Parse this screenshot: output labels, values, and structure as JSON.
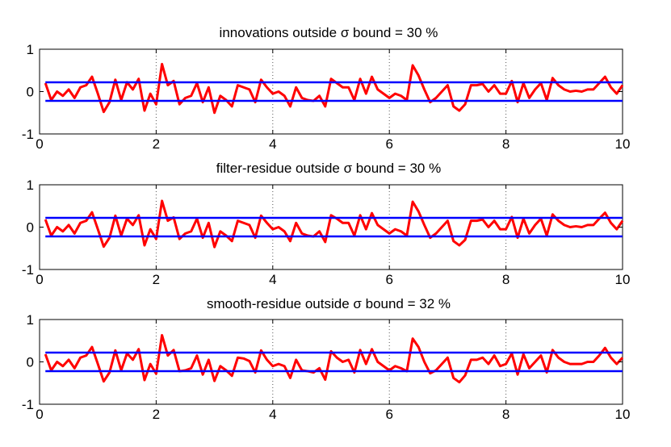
{
  "chart_data": [
    {
      "type": "line",
      "title": "innovations outside σ bound = 30 %",
      "xlim": [
        0,
        10
      ],
      "ylim": [
        -1,
        1
      ],
      "xticks": [
        "0",
        "2",
        "4",
        "6",
        "8",
        "10"
      ],
      "yticks": [
        "1",
        "0",
        "-1"
      ],
      "grid": "vertical dotted at x = 2, 4, 6, 8",
      "series": [
        {
          "color": "#ff0000",
          "x": [
            0.1,
            0.2,
            0.3,
            0.4,
            0.5,
            0.6,
            0.7,
            0.8,
            0.9,
            1.0,
            1.1,
            1.2,
            1.3,
            1.4,
            1.5,
            1.6,
            1.7,
            1.8,
            1.9,
            2.0,
            2.1,
            2.2,
            2.3,
            2.4,
            2.5,
            2.6,
            2.7,
            2.8,
            2.9,
            3.0,
            3.1,
            3.2,
            3.3,
            3.4,
            3.5,
            3.6,
            3.7,
            3.8,
            3.9,
            4.0,
            4.1,
            4.2,
            4.3,
            4.4,
            4.5,
            4.6,
            4.7,
            4.8,
            4.9,
            5.0,
            5.1,
            5.2,
            5.3,
            5.4,
            5.5,
            5.6,
            5.7,
            5.8,
            5.9,
            6.0,
            6.1,
            6.2,
            6.3,
            6.4,
            6.5,
            6.6,
            6.7,
            6.8,
            6.9,
            7.0,
            7.1,
            7.2,
            7.3,
            7.4,
            7.5,
            7.6,
            7.7,
            7.8,
            7.9,
            8.0,
            8.1,
            8.2,
            8.3,
            8.4,
            8.5,
            8.6,
            8.7,
            8.8,
            8.9,
            9.0,
            9.1,
            9.2,
            9.3,
            9.4,
            9.5,
            9.6,
            9.7,
            9.8,
            9.9,
            10.0
          ],
          "y": [
            0.2,
            -0.2,
            0.0,
            -0.1,
            0.05,
            -0.15,
            0.1,
            0.15,
            0.35,
            -0.05,
            -0.48,
            -0.25,
            0.28,
            -0.2,
            0.22,
            0.05,
            0.3,
            -0.45,
            -0.05,
            -0.3,
            0.65,
            0.15,
            0.25,
            -0.3,
            -0.15,
            -0.1,
            0.2,
            -0.25,
            0.1,
            -0.5,
            -0.1,
            -0.2,
            -0.35,
            0.15,
            0.1,
            0.05,
            -0.25,
            0.28,
            0.1,
            -0.05,
            0.0,
            -0.1,
            -0.35,
            0.1,
            -0.15,
            -0.2,
            -0.22,
            -0.1,
            -0.35,
            0.3,
            0.2,
            0.1,
            0.1,
            -0.2,
            0.3,
            -0.05,
            0.35,
            0.05,
            -0.05,
            -0.15,
            -0.05,
            -0.1,
            -0.2,
            0.62,
            0.38,
            0.05,
            -0.25,
            -0.15,
            0.0,
            0.15,
            -0.35,
            -0.45,
            -0.3,
            0.15,
            0.15,
            0.18,
            0.0,
            0.15,
            -0.05,
            -0.05,
            0.25,
            -0.25,
            0.2,
            -0.15,
            0.05,
            0.2,
            -0.2,
            0.32,
            0.15,
            0.05,
            0.0,
            0.02,
            0.0,
            0.05,
            0.05,
            0.2,
            0.35,
            0.1,
            -0.05,
            0.15
          ]
        },
        {
          "color": "#0000ff",
          "x": [
            0.1,
            10.0
          ],
          "y": [
            0.22,
            0.22
          ]
        },
        {
          "color": "#0000ff",
          "x": [
            0.1,
            10.0
          ],
          "y": [
            -0.22,
            -0.22
          ]
        }
      ]
    },
    {
      "type": "line",
      "title": "filter-residue outside σ bound = 30 %",
      "xlim": [
        0,
        10
      ],
      "ylim": [
        -1,
        1
      ],
      "xticks": [
        "0",
        "2",
        "4",
        "6",
        "8",
        "10"
      ],
      "yticks": [
        "1",
        "0",
        "-1"
      ],
      "grid": "vertical dotted at x = 2, 4, 6, 8",
      "series": [
        {
          "color": "#ff0000",
          "x": [
            0.1,
            0.2,
            0.3,
            0.4,
            0.5,
            0.6,
            0.7,
            0.8,
            0.9,
            1.0,
            1.1,
            1.2,
            1.3,
            1.4,
            1.5,
            1.6,
            1.7,
            1.8,
            1.9,
            2.0,
            2.1,
            2.2,
            2.3,
            2.4,
            2.5,
            2.6,
            2.7,
            2.8,
            2.9,
            3.0,
            3.1,
            3.2,
            3.3,
            3.4,
            3.5,
            3.6,
            3.7,
            3.8,
            3.9,
            4.0,
            4.1,
            4.2,
            4.3,
            4.4,
            4.5,
            4.6,
            4.7,
            4.8,
            4.9,
            5.0,
            5.1,
            5.2,
            5.3,
            5.4,
            5.5,
            5.6,
            5.7,
            5.8,
            5.9,
            6.0,
            6.1,
            6.2,
            6.3,
            6.4,
            6.5,
            6.6,
            6.7,
            6.8,
            6.9,
            7.0,
            7.1,
            7.2,
            7.3,
            7.4,
            7.5,
            7.6,
            7.7,
            7.8,
            7.9,
            8.0,
            8.1,
            8.2,
            8.3,
            8.4,
            8.5,
            8.6,
            8.7,
            8.8,
            8.9,
            9.0,
            9.1,
            9.2,
            9.3,
            9.4,
            9.5,
            9.6,
            9.7,
            9.8,
            9.9,
            10.0
          ],
          "y": [
            0.18,
            -0.2,
            0.0,
            -0.1,
            0.05,
            -0.15,
            0.1,
            0.15,
            0.35,
            -0.05,
            -0.46,
            -0.25,
            0.27,
            -0.2,
            0.2,
            0.05,
            0.28,
            -0.43,
            -0.05,
            -0.28,
            0.62,
            0.15,
            0.23,
            -0.28,
            -0.15,
            -0.1,
            0.2,
            -0.25,
            0.1,
            -0.47,
            -0.1,
            -0.2,
            -0.33,
            0.15,
            0.1,
            0.05,
            -0.25,
            0.27,
            0.1,
            -0.05,
            0.0,
            -0.1,
            -0.33,
            0.1,
            -0.15,
            -0.2,
            -0.22,
            -0.1,
            -0.35,
            0.28,
            0.2,
            0.1,
            0.1,
            -0.2,
            0.28,
            -0.05,
            0.33,
            0.05,
            -0.05,
            -0.15,
            -0.05,
            -0.1,
            -0.2,
            0.6,
            0.37,
            0.05,
            -0.25,
            -0.15,
            0.0,
            0.15,
            -0.33,
            -0.43,
            -0.3,
            0.15,
            0.15,
            0.18,
            0.0,
            0.15,
            -0.05,
            -0.05,
            0.24,
            -0.25,
            0.2,
            -0.15,
            0.05,
            0.2,
            -0.2,
            0.3,
            0.15,
            0.05,
            0.0,
            0.02,
            0.0,
            0.05,
            0.05,
            0.2,
            0.34,
            0.1,
            -0.05,
            0.15
          ]
        },
        {
          "color": "#0000ff",
          "x": [
            0.1,
            10.0
          ],
          "y": [
            0.22,
            0.22
          ]
        },
        {
          "color": "#0000ff",
          "x": [
            0.1,
            10.0
          ],
          "y": [
            -0.22,
            -0.22
          ]
        }
      ]
    },
    {
      "type": "line",
      "title": "smooth-residue outside σ bound = 32 %",
      "xlim": [
        0,
        10
      ],
      "ylim": [
        -1,
        1
      ],
      "xticks": [
        "0",
        "2",
        "4",
        "6",
        "8",
        "10"
      ],
      "yticks": [
        "1",
        "0",
        "-1"
      ],
      "grid": "vertical dotted at x = 2, 4, 6, 8",
      "series": [
        {
          "color": "#ff0000",
          "x": [
            0.1,
            0.2,
            0.3,
            0.4,
            0.5,
            0.6,
            0.7,
            0.8,
            0.9,
            1.0,
            1.1,
            1.2,
            1.3,
            1.4,
            1.5,
            1.6,
            1.7,
            1.8,
            1.9,
            2.0,
            2.1,
            2.2,
            2.3,
            2.4,
            2.5,
            2.6,
            2.7,
            2.8,
            2.9,
            3.0,
            3.1,
            3.2,
            3.3,
            3.4,
            3.5,
            3.6,
            3.7,
            3.8,
            3.9,
            4.0,
            4.1,
            4.2,
            4.3,
            4.4,
            4.5,
            4.6,
            4.7,
            4.8,
            4.9,
            5.0,
            5.1,
            5.2,
            5.3,
            5.4,
            5.5,
            5.6,
            5.7,
            5.8,
            5.9,
            6.0,
            6.1,
            6.2,
            6.3,
            6.4,
            6.5,
            6.6,
            6.7,
            6.8,
            6.9,
            7.0,
            7.1,
            7.2,
            7.3,
            7.4,
            7.5,
            7.6,
            7.7,
            7.8,
            7.9,
            8.0,
            8.1,
            8.2,
            8.3,
            8.4,
            8.5,
            8.6,
            8.7,
            8.8,
            8.9,
            9.0,
            9.1,
            9.2,
            9.3,
            9.4,
            9.5,
            9.6,
            9.7,
            9.8,
            9.9,
            10.0
          ],
          "y": [
            0.18,
            -0.2,
            0.0,
            -0.1,
            0.05,
            -0.15,
            0.1,
            0.15,
            0.35,
            -0.05,
            -0.46,
            -0.25,
            0.27,
            -0.2,
            0.2,
            0.05,
            0.3,
            -0.43,
            -0.05,
            -0.28,
            0.63,
            0.15,
            0.28,
            -0.22,
            -0.2,
            -0.15,
            0.15,
            -0.3,
            0.05,
            -0.45,
            -0.1,
            -0.2,
            -0.33,
            0.1,
            0.08,
            0.02,
            -0.25,
            0.27,
            0.05,
            -0.1,
            -0.05,
            -0.1,
            -0.38,
            0.05,
            -0.2,
            -0.22,
            -0.25,
            -0.15,
            -0.42,
            0.25,
            0.1,
            0.0,
            0.05,
            -0.25,
            0.28,
            -0.05,
            0.3,
            0.0,
            -0.1,
            -0.2,
            -0.1,
            -0.15,
            -0.22,
            0.55,
            0.35,
            0.0,
            -0.27,
            -0.2,
            -0.05,
            0.1,
            -0.38,
            -0.48,
            -0.32,
            0.05,
            0.05,
            0.1,
            -0.05,
            0.15,
            -0.1,
            -0.05,
            0.2,
            -0.3,
            0.18,
            -0.15,
            0.0,
            0.15,
            -0.25,
            0.28,
            0.1,
            0.0,
            -0.05,
            -0.05,
            -0.05,
            0.0,
            0.0,
            0.15,
            0.33,
            0.1,
            -0.05,
            0.1
          ]
        },
        {
          "color": "#0000ff",
          "x": [
            0.1,
            10.0
          ],
          "y": [
            0.22,
            0.22
          ]
        },
        {
          "color": "#0000ff",
          "x": [
            0.1,
            10.0
          ],
          "y": [
            -0.22,
            -0.22
          ]
        }
      ]
    }
  ]
}
